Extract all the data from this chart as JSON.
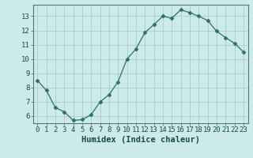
{
  "x": [
    0,
    1,
    2,
    3,
    4,
    5,
    6,
    7,
    8,
    9,
    10,
    11,
    12,
    13,
    14,
    15,
    16,
    17,
    18,
    19,
    20,
    21,
    22,
    23
  ],
  "y": [
    8.5,
    7.8,
    6.6,
    6.3,
    5.7,
    5.75,
    6.1,
    7.0,
    7.5,
    8.4,
    10.0,
    10.7,
    11.85,
    12.4,
    13.0,
    12.85,
    13.45,
    13.25,
    13.0,
    12.7,
    11.95,
    11.5,
    11.1,
    10.5
  ],
  "line_color": "#2d6e6e",
  "marker": "D",
  "marker_size": 2.5,
  "bg_color": "#cceaea",
  "grid_color": "#aacccc",
  "xlabel": "Humidex (Indice chaleur)",
  "xlim": [
    -0.5,
    23.5
  ],
  "ylim": [
    5.5,
    13.8
  ],
  "yticks": [
    6,
    7,
    8,
    9,
    10,
    11,
    12,
    13
  ],
  "xticks": [
    0,
    1,
    2,
    3,
    4,
    5,
    6,
    7,
    8,
    9,
    10,
    11,
    12,
    13,
    14,
    15,
    16,
    17,
    18,
    19,
    20,
    21,
    22,
    23
  ],
  "label_fontsize": 7.5,
  "tick_fontsize": 6.5,
  "spine_color": "#557777",
  "axis_label_color": "#1a4a4a"
}
